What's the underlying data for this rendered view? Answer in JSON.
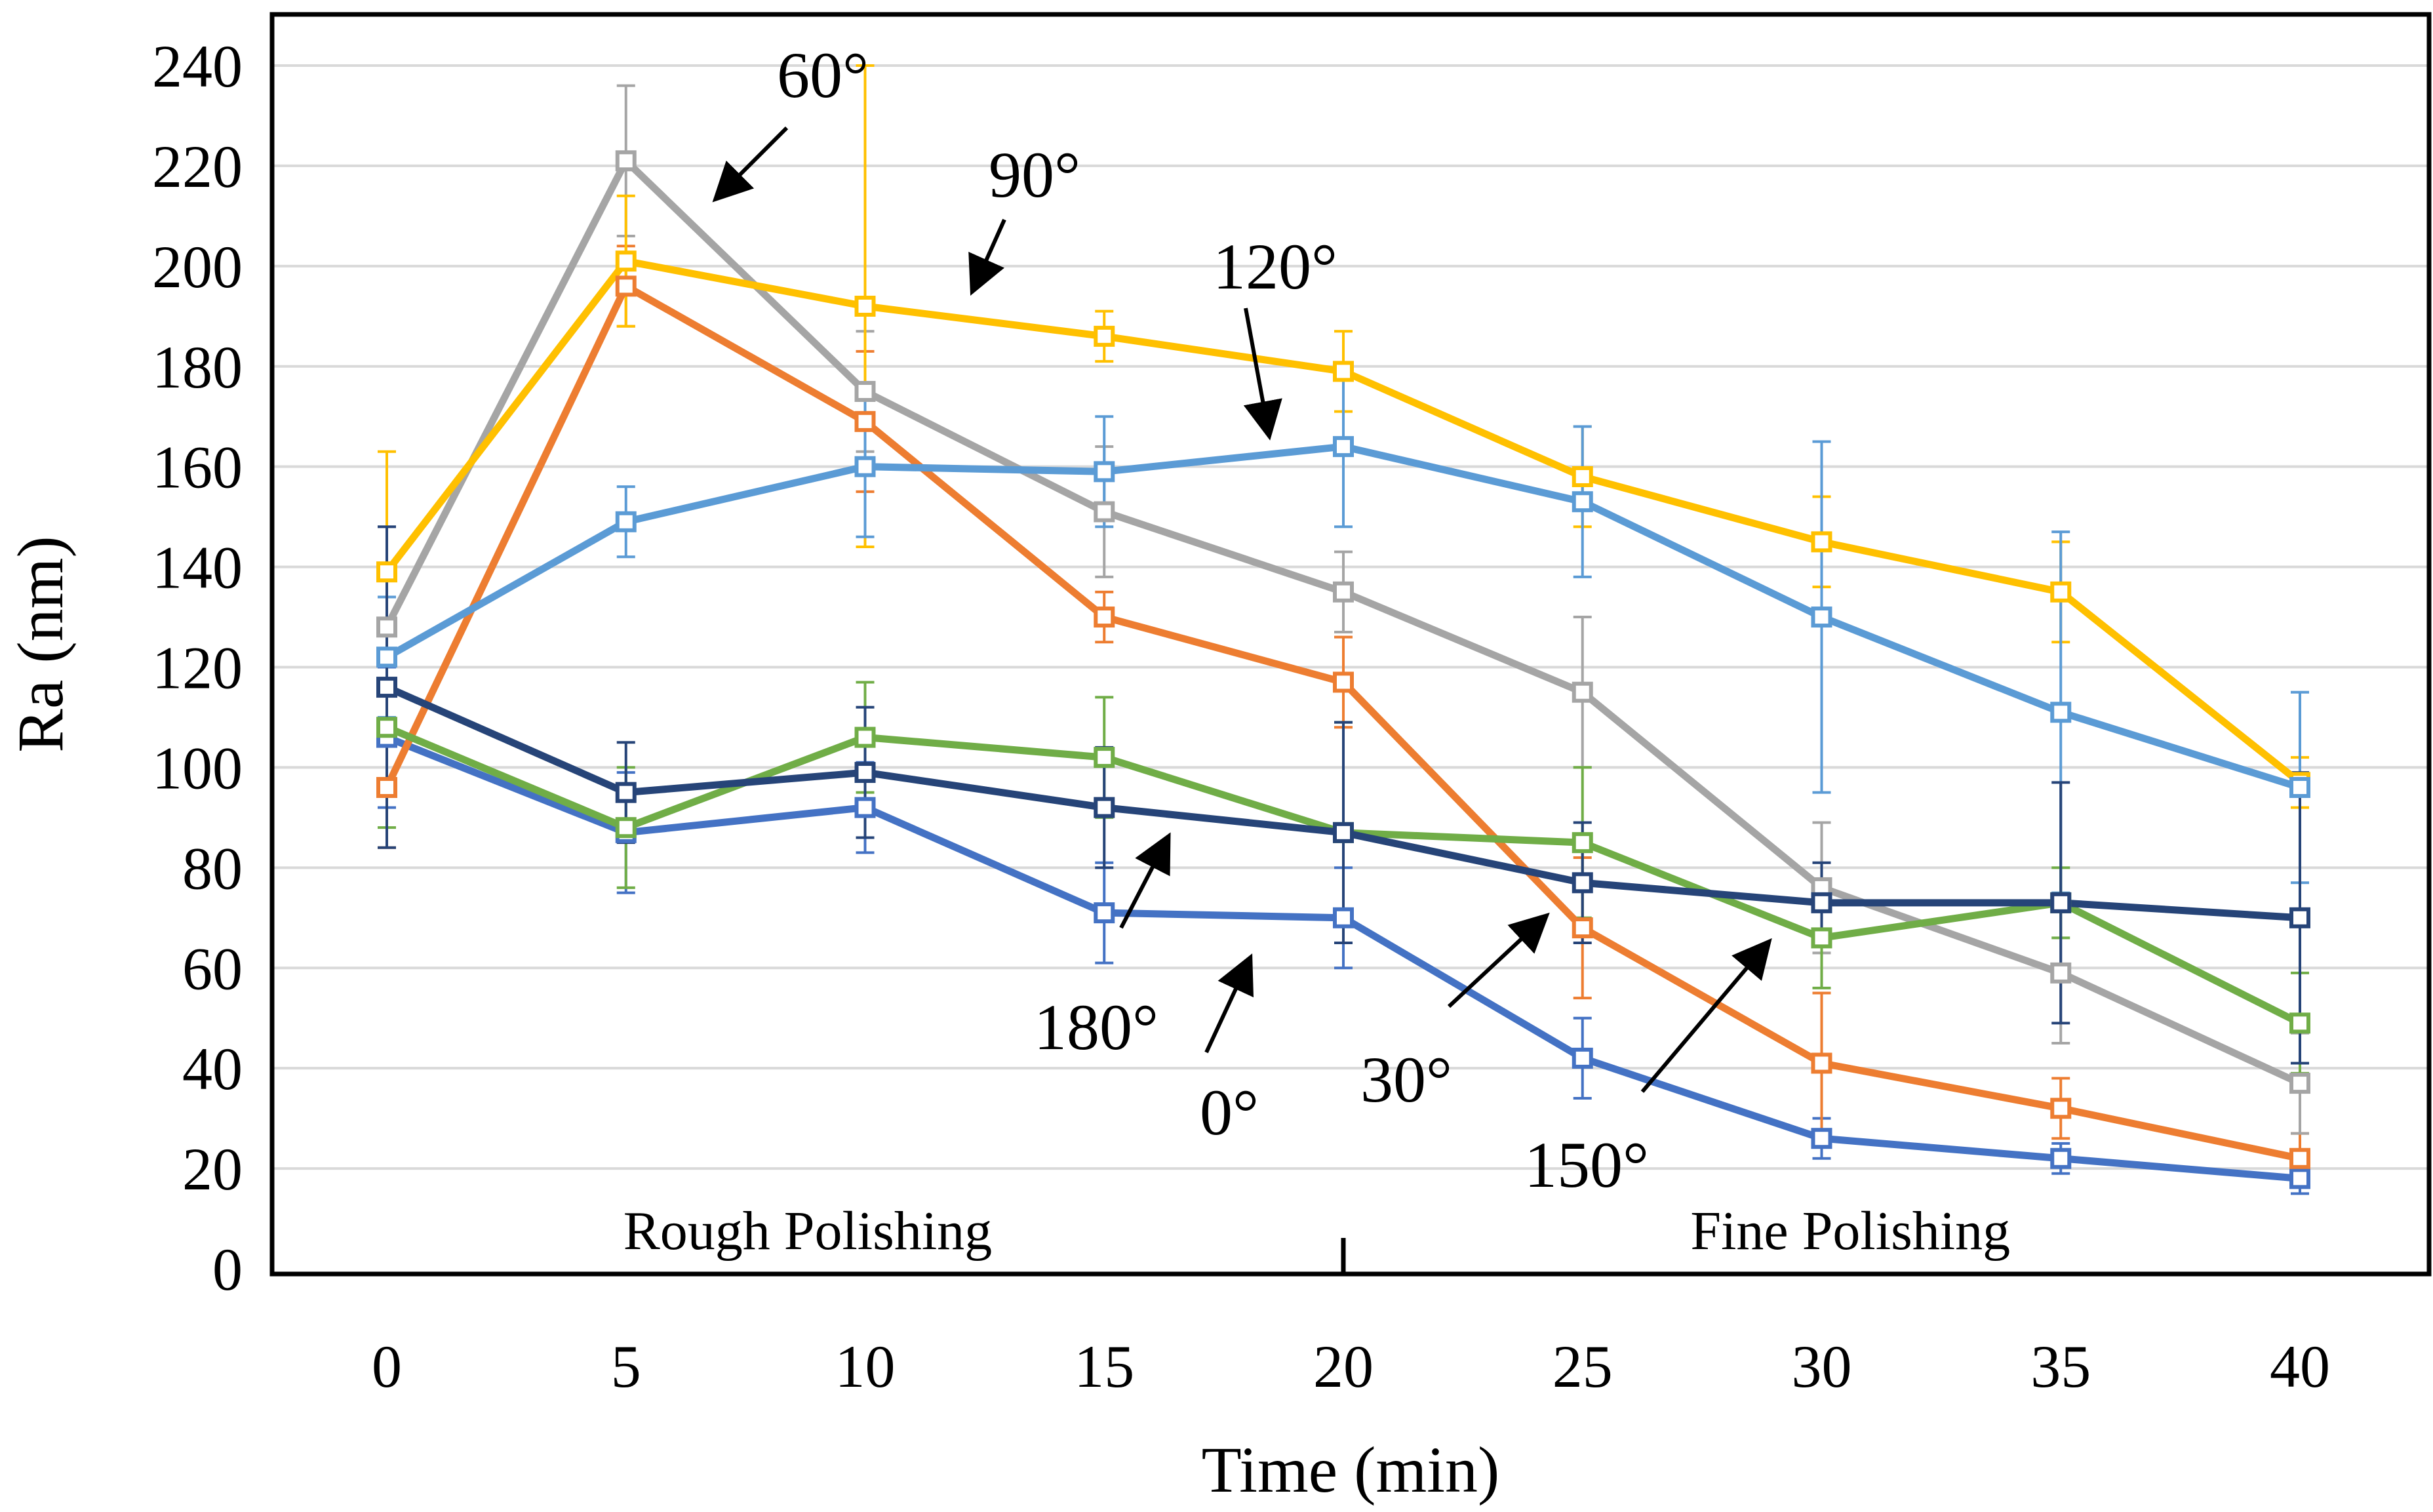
{
  "chart_data": {
    "type": "line",
    "title": "",
    "xlabel": "Time (min)",
    "ylabel": "Ra (nm)",
    "x": [
      0,
      5,
      10,
      15,
      20,
      25,
      30,
      35,
      40
    ],
    "xlim": [
      0,
      40
    ],
    "ylim": [
      0,
      240
    ],
    "x_ticks": [
      "0",
      "5",
      "10",
      "15",
      "20",
      "25",
      "30",
      "35",
      "40"
    ],
    "y_ticks": [
      "0",
      "20",
      "40",
      "60",
      "80",
      "100",
      "120",
      "140",
      "160",
      "180",
      "200",
      "220",
      "240"
    ],
    "grid": "horizontal",
    "phase_labels": [
      {
        "text": "Rough Polishing",
        "x_center": 8.8
      },
      {
        "text": "Fine Polishing",
        "x_center": 30.6
      }
    ],
    "phase_divider_x": 20,
    "series": [
      {
        "name": "0°",
        "color": "#4472C4",
        "values": [
          106,
          87,
          92,
          71,
          70,
          42,
          26,
          22,
          18
        ],
        "errors": [
          14,
          12,
          9,
          10,
          10,
          8,
          4,
          3,
          3
        ]
      },
      {
        "name": "30°",
        "color": "#ED7D31",
        "values": [
          96,
          196,
          169,
          130,
          117,
          68,
          41,
          32,
          22
        ],
        "errors": [
          12,
          8,
          14,
          5,
          9,
          14,
          14,
          6,
          5
        ]
      },
      {
        "name": "60°",
        "color": "#A5A5A5",
        "values": [
          128,
          221,
          175,
          151,
          135,
          115,
          76,
          59,
          37
        ],
        "errors": [
          20,
          15,
          12,
          13,
          8,
          15,
          13,
          14,
          10
        ]
      },
      {
        "name": "90°",
        "color": "#FFC000",
        "values": [
          139,
          201,
          192,
          186,
          179,
          158,
          145,
          135,
          97
        ],
        "errors": [
          24,
          13,
          48,
          5,
          8,
          10,
          9,
          10,
          5
        ]
      },
      {
        "name": "120°",
        "color": "#5B9BD5",
        "values": [
          122,
          149,
          160,
          159,
          164,
          153,
          130,
          111,
          96
        ],
        "errors": [
          12,
          7,
          14,
          11,
          16,
          15,
          35,
          36,
          19
        ]
      },
      {
        "name": "150°",
        "color": "#70AD47",
        "values": [
          108,
          88,
          106,
          102,
          87,
          85,
          66,
          73,
          49
        ],
        "errors": [
          20,
          12,
          11,
          12,
          22,
          15,
          10,
          7,
          10
        ]
      },
      {
        "name": "180°",
        "color": "#264478",
        "values": [
          116,
          95,
          99,
          92,
          87,
          77,
          73,
          73,
          70
        ],
        "errors": [
          32,
          10,
          13,
          12,
          22,
          12,
          8,
          24,
          29
        ]
      }
    ],
    "annotations": [
      {
        "text": "60°",
        "series": "60°"
      },
      {
        "text": "90°",
        "series": "90°"
      },
      {
        "text": "120°",
        "series": "120°"
      },
      {
        "text": "180°",
        "series": "180°"
      },
      {
        "text": "0°",
        "series": "0°"
      },
      {
        "text": "30°",
        "series": "30°"
      },
      {
        "text": "150°",
        "series": "150°"
      }
    ]
  }
}
